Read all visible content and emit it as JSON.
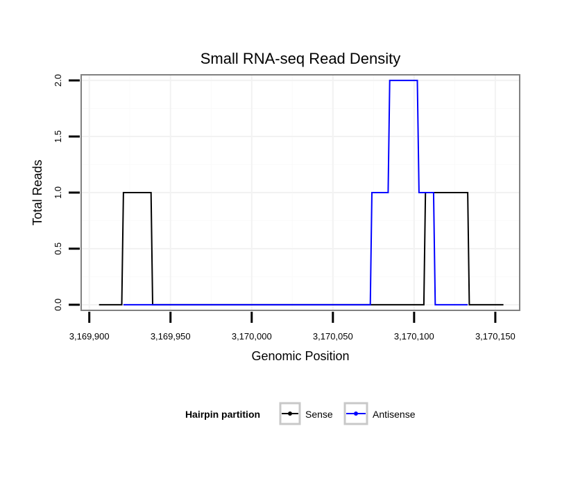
{
  "chart_data": {
    "type": "line",
    "title": "Small RNA-seq Read Density",
    "xlabel": "Genomic Position",
    "ylabel": "Total Reads",
    "xlim": [
      3169895,
      3170165
    ],
    "ylim": [
      -0.05,
      2.05
    ],
    "x_ticks": [
      3169900,
      3169950,
      3170000,
      3170050,
      3170100,
      3170150
    ],
    "x_tick_labels": [
      "3,169,900",
      "3,169,950",
      "3,170,000",
      "3,170,050",
      "3,170,100",
      "3,170,150"
    ],
    "y_ticks": [
      0,
      0.5,
      1,
      1.5,
      2
    ],
    "y_tick_labels": [
      "0.0",
      "0.5",
      "1.0",
      "1.5",
      "2.0"
    ],
    "grid": true,
    "legend": {
      "title": "Hairpin partition",
      "position": "bottom",
      "entries": [
        "Sense",
        "Antisense"
      ]
    },
    "series": [
      {
        "name": "Sense",
        "color": "#000000",
        "points": [
          [
            3169906,
            0
          ],
          [
            3169920,
            0
          ],
          [
            3169921,
            1
          ],
          [
            3169938,
            1
          ],
          [
            3169939,
            0
          ],
          [
            3170106,
            0
          ],
          [
            3170107,
            1
          ],
          [
            3170133,
            1
          ],
          [
            3170134,
            0
          ],
          [
            3170155,
            0
          ]
        ]
      },
      {
        "name": "Antisense",
        "color": "#0000ff",
        "points": [
          [
            3169921,
            0
          ],
          [
            3169939,
            0
          ],
          [
            3170073,
            0
          ],
          [
            3170074,
            1
          ],
          [
            3170084,
            1
          ],
          [
            3170085,
            2
          ],
          [
            3170102,
            2
          ],
          [
            3170103,
            1
          ],
          [
            3170112,
            1
          ],
          [
            3170113,
            0
          ],
          [
            3170133,
            0
          ]
        ]
      }
    ]
  }
}
